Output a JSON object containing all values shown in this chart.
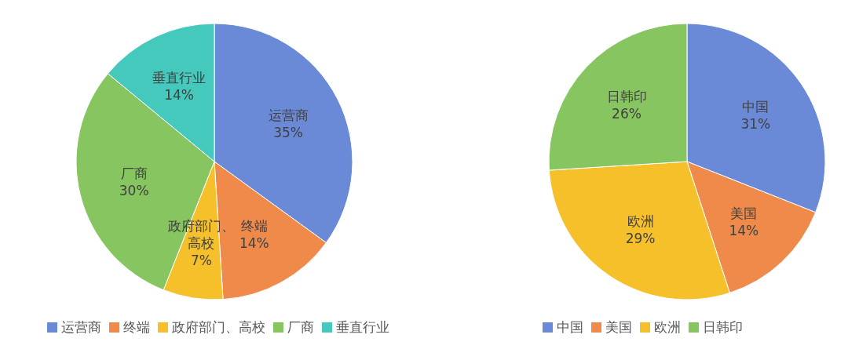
{
  "chart_data": [
    {
      "type": "pie",
      "categories": [
        "运营商",
        "终端",
        "政府部门、高校",
        "厂商",
        "垂直行业"
      ],
      "values": [
        35,
        14,
        7,
        30,
        14
      ],
      "value_labels": [
        "35%",
        "14%",
        "7%",
        "30%",
        "14%"
      ],
      "colors": [
        "#6a8ad8",
        "#f08a4b",
        "#f5c02a",
        "#86c55f",
        "#45c9bd"
      ],
      "legend": "bottom"
    },
    {
      "type": "pie",
      "categories": [
        "中国",
        "美国",
        "欧洲",
        "日韩印"
      ],
      "values": [
        31,
        14,
        29,
        26
      ],
      "value_labels": [
        "31%",
        "14%",
        "29%",
        "26%"
      ],
      "colors": [
        "#6a8ad8",
        "#f08a4b",
        "#f5c02a",
        "#86c55f"
      ],
      "legend": "bottom"
    }
  ]
}
